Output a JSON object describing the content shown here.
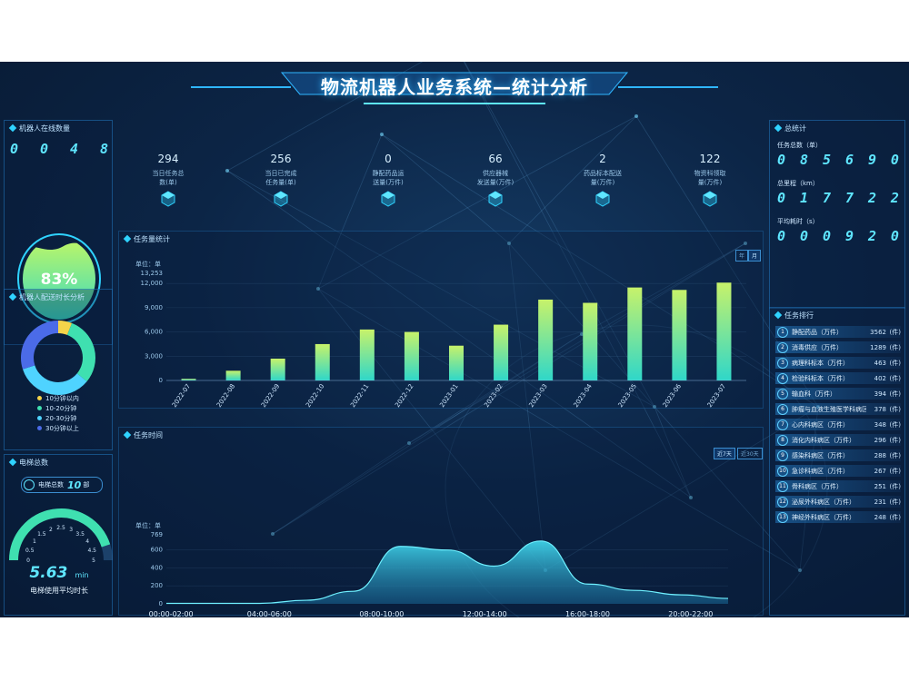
{
  "title": "物流机器人业务系统—统计分析",
  "robots_online": {
    "title": "机器人在线数量",
    "digits": [
      "0",
      "0",
      "4",
      "8"
    ],
    "percent": "83%"
  },
  "robot_time": {
    "title": "机器人配送时长分析",
    "legend": [
      "10分钟以内",
      "10-20分钟",
      "20-30分钟",
      "30分钟以上"
    ],
    "colors": [
      "#f5d44a",
      "#3fe0b0",
      "#4fd3ff",
      "#4b6be8"
    ],
    "shares": [
      0.06,
      0.3,
      0.34,
      0.3
    ]
  },
  "elevator": {
    "title": "电梯总数",
    "count_label": "电梯总数",
    "count_value": "10",
    "count_unit": "部",
    "gauge_ticks": [
      "0",
      "0.5",
      "1",
      "1.5",
      "2",
      "2.5",
      "3",
      "3.5",
      "4",
      "4.5",
      "5"
    ],
    "value": "5.63",
    "unit": "min",
    "caption": "电梯使用平均时长",
    "fill_ratio": 0.9
  },
  "top_stats": [
    {
      "value": "294",
      "label1": "当日任务总",
      "label2": "数(单)"
    },
    {
      "value": "256",
      "label1": "当日已完成",
      "label2": "任务量(单)"
    },
    {
      "value": "0",
      "label1": "静配药品运",
      "label2": "送量(万件)"
    },
    {
      "value": "66",
      "label1": "供应器械",
      "label2": "发送量(万件)"
    },
    {
      "value": "2",
      "label1": "药品标本配送",
      "label2": "量(万件)"
    },
    {
      "value": "122",
      "label1": "物资科领取",
      "label2": "量(万件)"
    }
  ],
  "monthly_chart": {
    "title": "任务量统计",
    "toggle": [
      "年",
      "月"
    ],
    "chart_data": {
      "type": "bar",
      "ylabel": "单位：单",
      "ylim": [
        0,
        13253
      ],
      "yticks": [
        "13,253",
        "12,000",
        "9,000",
        "6,000",
        "3,000",
        "0"
      ],
      "categories": [
        "2022-07",
        "2022-08",
        "2022-09",
        "2022-10",
        "2022-11",
        "2022-12",
        "2023-01",
        "2023-02",
        "2023-03",
        "2023-04",
        "2023-05",
        "2023-06",
        "2023-07"
      ],
      "values": [
        200,
        1200,
        2700,
        4500,
        6300,
        6000,
        4300,
        6900,
        10000,
        9600,
        11500,
        11200,
        12100
      ]
    }
  },
  "time_chart": {
    "title": "任务时间",
    "toggle": [
      "近7天",
      "近30天"
    ],
    "chart_data": {
      "type": "area",
      "ylabel": "单位：单",
      "ylim": [
        0,
        769
      ],
      "yticks": [
        "769",
        "600",
        "400",
        "200",
        "0"
      ],
      "x_labels": [
        "00:00-02:00",
        "04:00-06:00",
        "08:00-10:00",
        "12:00-14:00",
        "16:00-18:00",
        "20:00-22:00"
      ],
      "x": [
        0,
        1,
        2,
        3,
        4,
        5,
        6,
        7,
        8,
        9,
        10,
        11,
        12
      ],
      "values": [
        5,
        5,
        5,
        40,
        140,
        640,
        600,
        420,
        700,
        220,
        150,
        100,
        60
      ]
    }
  },
  "totals": {
    "title": "总统计",
    "rows": [
      {
        "label": "任务总数（单）",
        "digits": [
          "0",
          "8",
          "5",
          "6",
          "9",
          "0"
        ]
      },
      {
        "label": "总里程（km）",
        "digits": [
          "0",
          "1",
          "7",
          "7",
          "2",
          "2"
        ]
      },
      {
        "label": "平均耗时（s）",
        "digits": [
          "0",
          "0",
          "0",
          "9",
          "2",
          "0"
        ]
      }
    ]
  },
  "ranking": {
    "title": "任务排行",
    "rows": [
      {
        "num": "1",
        "name": "静配药品（万件）",
        "count": "3562",
        "unit": "(件)"
      },
      {
        "num": "2",
        "name": "消毒供应（万件）",
        "count": "1289",
        "unit": "(件)"
      },
      {
        "num": "3",
        "name": "病理科标本（万件）",
        "count": "463",
        "unit": "(件)"
      },
      {
        "num": "4",
        "name": "检验科标本（万件）",
        "count": "402",
        "unit": "(件)"
      },
      {
        "num": "5",
        "name": "输血科（万件）",
        "count": "394",
        "unit": "(件)"
      },
      {
        "num": "6",
        "name": "肿瘤与血液生殖医学科病区（万件）",
        "count": "378",
        "unit": "(件)"
      },
      {
        "num": "7",
        "name": "心内科病区（万件）",
        "count": "348",
        "unit": "(件)"
      },
      {
        "num": "8",
        "name": "消化内科病区（万件）",
        "count": "296",
        "unit": "(件)"
      },
      {
        "num": "9",
        "name": "感染科病区（万件）",
        "count": "288",
        "unit": "(件)"
      },
      {
        "num": "10",
        "name": "急诊科病区（万件）",
        "count": "267",
        "unit": "(件)"
      },
      {
        "num": "11",
        "name": "骨科病区（万件）",
        "count": "251",
        "unit": "(件)"
      },
      {
        "num": "12",
        "name": "泌尿外科病区（万件）",
        "count": "231",
        "unit": "(件)"
      },
      {
        "num": "13",
        "name": "神经外科病区（万件）",
        "count": "248",
        "unit": "(件)"
      }
    ]
  }
}
